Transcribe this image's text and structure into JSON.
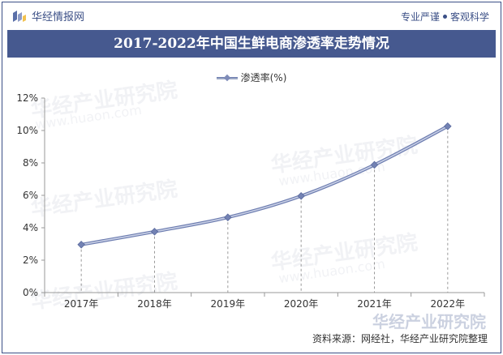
{
  "header": {
    "brand_name": "华经情报网",
    "slogan_left": "专业严谨",
    "slogan_right": "客观科学"
  },
  "colors": {
    "title_band": "#46598f",
    "line": "#8b98c0",
    "marker": "#7382b3",
    "accent": "#3b4f86"
  },
  "icons": [
    "huajing-logo-icon",
    "legend-diamond-marker-icon"
  ],
  "chart_data": {
    "type": "line",
    "title": "2017-2022年中国生鲜电商渗透率走势情况",
    "xlabel": "",
    "ylabel": "",
    "categories": [
      "2017年",
      "2018年",
      "2019年",
      "2020年",
      "2021年",
      "2022年"
    ],
    "series": [
      {
        "name": "渗透率(%)",
        "values": [
          2.96,
          3.76,
          4.64,
          5.96,
          7.88,
          10.26
        ]
      }
    ],
    "ylim": [
      0,
      12
    ],
    "yticks": [
      "0%",
      "2%",
      "4%",
      "6%",
      "8%",
      "10%",
      "12%"
    ],
    "legend_position": "top-center",
    "grid": false,
    "drop_lines": true
  },
  "watermark": {
    "text": "华经产业研究院",
    "sub": "www.huaon.com"
  },
  "source": "资料来源：网经社，华经产业研究院整理"
}
